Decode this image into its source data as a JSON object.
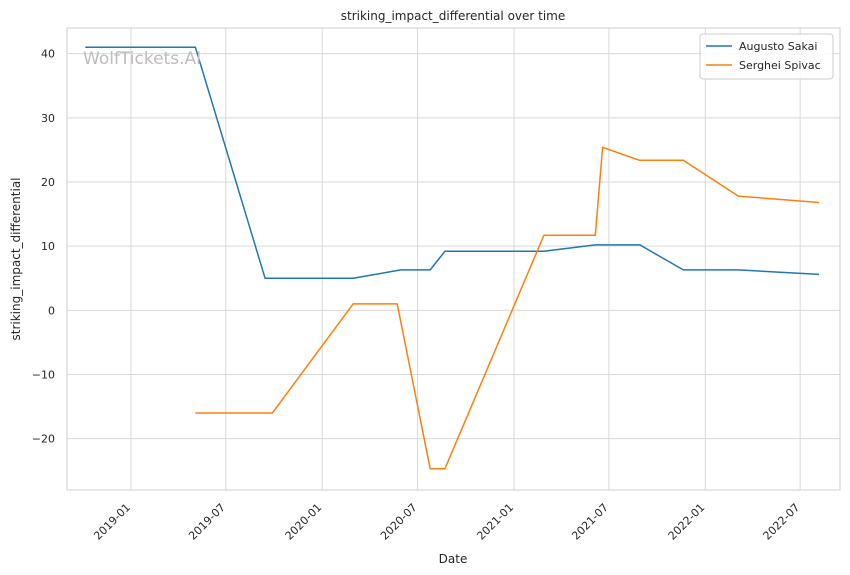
{
  "chart_data": {
    "type": "line",
    "title": "striking_impact_differential over time",
    "xlabel": "Date",
    "ylabel": "striking_impact_differential",
    "watermark": "WolfTickets.AI",
    "x_ticks": [
      "2019-01",
      "2019-07",
      "2020-01",
      "2020-07",
      "2021-01",
      "2021-07",
      "2022-01",
      "2022-07"
    ],
    "x_range": [
      "2018-09-01",
      "2022-09-15"
    ],
    "y_ticks": [
      -20,
      -10,
      0,
      10,
      20,
      30,
      40
    ],
    "ylim": [
      -28,
      44
    ],
    "grid": true,
    "legend_position": "top-right",
    "series": [
      {
        "name": "Augusto Sakai",
        "color": "#1f77b4",
        "x": [
          "2018-10-06",
          "2019-05-04",
          "2019-09-14",
          "2020-02-29",
          "2020-05-30",
          "2020-07-25",
          "2020-08-22",
          "2021-02-27",
          "2021-06-05",
          "2021-08-29",
          "2021-11-20",
          "2022-03-05",
          "2022-08-06"
        ],
        "y": [
          41,
          41,
          5,
          5,
          6.3,
          6.3,
          9.2,
          9.2,
          10.2,
          10.2,
          6.3,
          6.3,
          5.6
        ]
      },
      {
        "name": "Serghei Spivac",
        "color": "#ff7f0e",
        "x": [
          "2019-05-04",
          "2019-09-28",
          "2020-02-29",
          "2020-05-23",
          "2020-07-25",
          "2020-08-22",
          "2021-02-27",
          "2021-06-05",
          "2021-06-19",
          "2021-08-28",
          "2021-11-20",
          "2022-03-05",
          "2022-08-06"
        ],
        "y": [
          -16,
          -16,
          1,
          1,
          -24.7,
          -24.7,
          11.7,
          11.7,
          25.4,
          23.4,
          23.4,
          17.8,
          16.8
        ]
      }
    ]
  }
}
